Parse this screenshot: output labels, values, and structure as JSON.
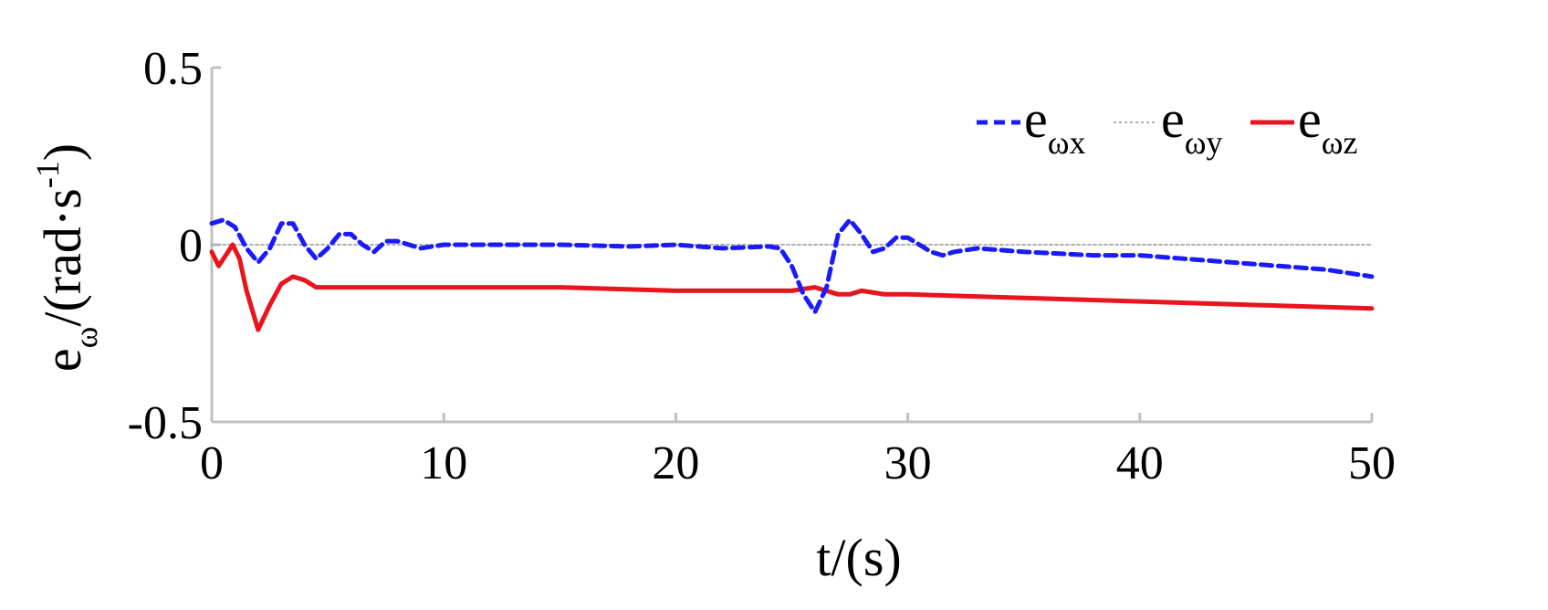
{
  "chart_data": {
    "type": "line",
    "xlabel": "t/(s)",
    "ylabel": {
      "main": "e",
      "sub": "ω",
      "unit_open": "/(rad·s",
      "unit_sup": "-1",
      "unit_close": ")"
    },
    "xlim": [
      0,
      50
    ],
    "ylim": [
      -0.5,
      0.5
    ],
    "xticks": [
      0,
      10,
      20,
      30,
      40,
      50
    ],
    "xtick_labels": [
      "0",
      "10",
      "20",
      "30",
      "40",
      "50"
    ],
    "yticks": [
      -0.5,
      0,
      0.5
    ],
    "ytick_labels": [
      "-0.5",
      "0",
      "0.5"
    ],
    "grid": false,
    "legend_position": "top-right",
    "series": [
      {
        "name": "e",
        "name_sub": "ωx",
        "color": "#1a1aff",
        "style": "dashed",
        "x": [
          0,
          0.5,
          1,
          1.5,
          2,
          2.5,
          3,
          3.5,
          4,
          4.5,
          5,
          5.5,
          6,
          6.5,
          7,
          7.5,
          8,
          9,
          10,
          12,
          15,
          18,
          20,
          22,
          24,
          24.5,
          25,
          25.5,
          26,
          26.5,
          27,
          27.5,
          28,
          28.5,
          29,
          29.5,
          30,
          30.5,
          31,
          31.5,
          32,
          33,
          35,
          38,
          40,
          42,
          44,
          46,
          48,
          50
        ],
        "y": [
          0.06,
          0.07,
          0.05,
          -0.01,
          -0.05,
          -0.01,
          0.06,
          0.06,
          0.0,
          -0.04,
          -0.01,
          0.03,
          0.03,
          0.0,
          -0.02,
          0.01,
          0.01,
          -0.01,
          0.0,
          0.0,
          0.0,
          -0.005,
          0.0,
          -0.01,
          -0.005,
          -0.01,
          -0.06,
          -0.14,
          -0.19,
          -0.12,
          0.03,
          0.07,
          0.03,
          -0.02,
          -0.01,
          0.02,
          0.02,
          0.0,
          -0.02,
          -0.03,
          -0.02,
          -0.01,
          -0.02,
          -0.03,
          -0.03,
          -0.04,
          -0.05,
          -0.06,
          -0.07,
          -0.09
        ]
      },
      {
        "name": "e",
        "name_sub": "ωy",
        "color": "#b0b0b0",
        "style": "dotted",
        "x": [
          0,
          50
        ],
        "y": [
          0.0,
          0.0
        ]
      },
      {
        "name": "e",
        "name_sub": "ωz",
        "color": "#e8141e",
        "style": "solid",
        "x": [
          0,
          0.3,
          0.6,
          0.9,
          1.2,
          1.5,
          2.0,
          2.5,
          3.0,
          3.5,
          4.0,
          4.5,
          5.0,
          6,
          8,
          10,
          15,
          20,
          24,
          25,
          26,
          27,
          27.5,
          28,
          29,
          30,
          35,
          40,
          45,
          50
        ],
        "y": [
          -0.02,
          -0.06,
          -0.03,
          0.0,
          -0.04,
          -0.13,
          -0.24,
          -0.17,
          -0.11,
          -0.09,
          -0.1,
          -0.12,
          -0.12,
          -0.12,
          -0.12,
          -0.12,
          -0.12,
          -0.13,
          -0.13,
          -0.13,
          -0.12,
          -0.14,
          -0.14,
          -0.13,
          -0.14,
          -0.14,
          -0.15,
          -0.16,
          -0.17,
          -0.18
        ]
      }
    ]
  },
  "colors": {
    "axis": "#c0c0c0",
    "text": "#000000"
  }
}
